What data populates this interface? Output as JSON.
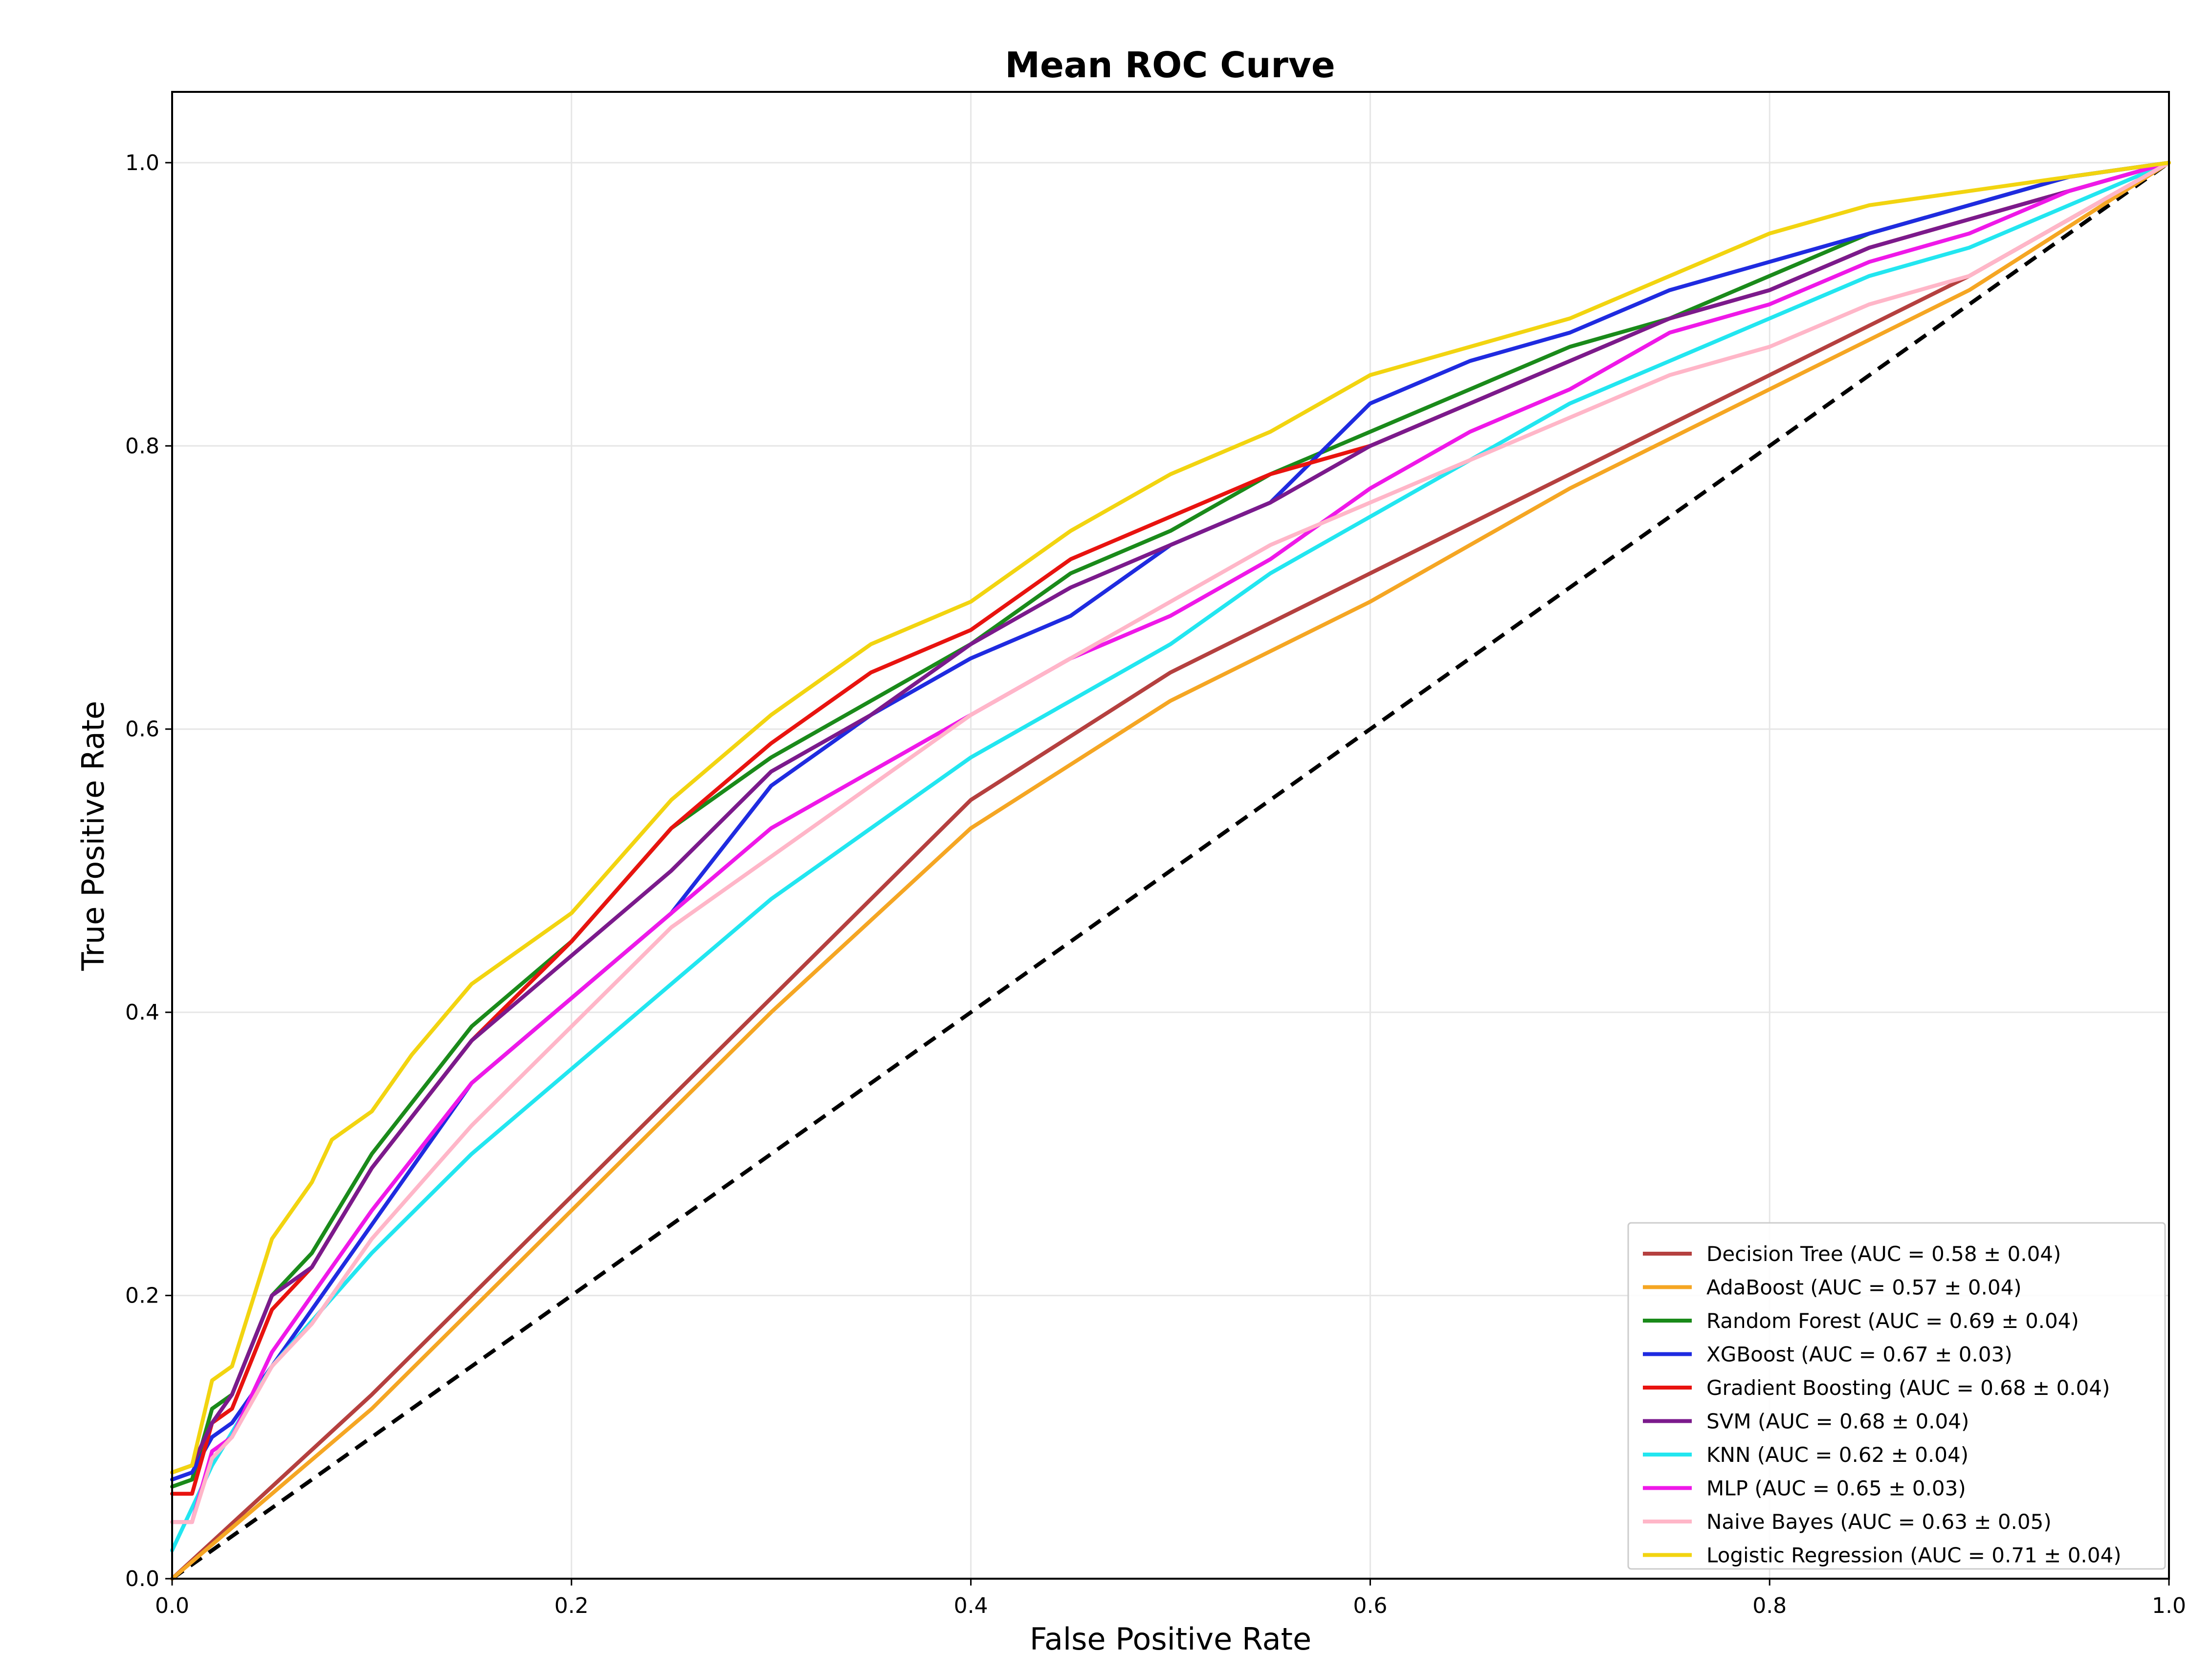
{
  "chart_data": {
    "type": "line",
    "title": "Mean ROC Curve",
    "xlabel": "False Positive Rate",
    "ylabel": "True Positive Rate",
    "xlim": [
      0.0,
      1.0
    ],
    "ylim": [
      0.0,
      1.05
    ],
    "x_ticks": [
      "0.0",
      "0.2",
      "0.4",
      "0.6",
      "0.8",
      "1.0"
    ],
    "y_ticks": [
      "0.0",
      "0.2",
      "0.4",
      "0.6",
      "0.8",
      "1.0"
    ],
    "grid": true,
    "legend_position": "lower-right",
    "reference_line": {
      "style": "dashed",
      "color": "#000000",
      "x": [
        0.0,
        1.0
      ],
      "y": [
        0.0,
        1.0
      ]
    },
    "series": [
      {
        "name": "Decision Tree (AUC = 0.58 ± 0.04)",
        "color": "#b5403f",
        "x": [
          0.0,
          0.05,
          0.1,
          0.2,
          0.3,
          0.4,
          0.5,
          0.6,
          0.7,
          0.8,
          0.9,
          1.0
        ],
        "y": [
          0.0,
          0.065,
          0.13,
          0.27,
          0.41,
          0.55,
          0.64,
          0.71,
          0.78,
          0.85,
          0.92,
          1.0
        ]
      },
      {
        "name": "AdaBoost (AUC = 0.57 ± 0.04)",
        "color": "#f5a623",
        "x": [
          0.0,
          0.05,
          0.1,
          0.2,
          0.3,
          0.4,
          0.5,
          0.6,
          0.7,
          0.8,
          0.9,
          1.0
        ],
        "y": [
          0.0,
          0.06,
          0.12,
          0.26,
          0.4,
          0.53,
          0.62,
          0.69,
          0.77,
          0.84,
          0.91,
          1.0
        ]
      },
      {
        "name": "Random Forest (AUC = 0.69 ± 0.04)",
        "color": "#1a8a1a",
        "x": [
          0.0,
          0.01,
          0.02,
          0.03,
          0.05,
          0.07,
          0.1,
          0.15,
          0.2,
          0.25,
          0.3,
          0.35,
          0.4,
          0.45,
          0.5,
          0.55,
          0.6,
          0.65,
          0.7,
          0.75,
          0.8,
          0.85,
          0.9,
          0.95,
          1.0
        ],
        "y": [
          0.065,
          0.07,
          0.12,
          0.13,
          0.2,
          0.23,
          0.3,
          0.39,
          0.45,
          0.53,
          0.58,
          0.62,
          0.66,
          0.71,
          0.74,
          0.78,
          0.81,
          0.84,
          0.87,
          0.89,
          0.92,
          0.95,
          0.97,
          0.99,
          1.0
        ]
      },
      {
        "name": "XGBoost (AUC = 0.67 ± 0.03)",
        "color": "#1f2be0",
        "x": [
          0.0,
          0.01,
          0.02,
          0.03,
          0.05,
          0.07,
          0.1,
          0.15,
          0.2,
          0.25,
          0.3,
          0.35,
          0.4,
          0.45,
          0.5,
          0.55,
          0.6,
          0.65,
          0.7,
          0.75,
          0.8,
          0.85,
          0.9,
          0.95,
          1.0
        ],
        "y": [
          0.07,
          0.075,
          0.1,
          0.11,
          0.15,
          0.19,
          0.25,
          0.35,
          0.41,
          0.47,
          0.56,
          0.61,
          0.65,
          0.68,
          0.73,
          0.76,
          0.83,
          0.86,
          0.88,
          0.91,
          0.93,
          0.95,
          0.97,
          0.99,
          1.0
        ]
      },
      {
        "name": "Gradient Boosting (AUC = 0.68 ± 0.04)",
        "color": "#e8130f",
        "x": [
          0.0,
          0.01,
          0.02,
          0.03,
          0.05,
          0.07,
          0.1,
          0.15,
          0.2,
          0.25,
          0.3,
          0.35,
          0.4,
          0.45,
          0.5,
          0.55,
          0.6,
          0.65,
          0.7,
          0.75,
          0.8,
          0.85,
          0.9,
          0.95,
          1.0
        ],
        "y": [
          0.06,
          0.06,
          0.11,
          0.12,
          0.19,
          0.22,
          0.29,
          0.38,
          0.45,
          0.53,
          0.59,
          0.64,
          0.67,
          0.72,
          0.75,
          0.78,
          0.8,
          0.83,
          0.86,
          0.89,
          0.91,
          0.94,
          0.96,
          0.98,
          1.0
        ]
      },
      {
        "name": "SVM (AUC = 0.68 ± 0.04)",
        "color": "#7b1a8c",
        "x": [
          0.0,
          0.01,
          0.02,
          0.03,
          0.05,
          0.07,
          0.1,
          0.15,
          0.2,
          0.25,
          0.3,
          0.35,
          0.4,
          0.45,
          0.5,
          0.55,
          0.6,
          0.65,
          0.7,
          0.75,
          0.8,
          0.85,
          0.9,
          0.95,
          1.0
        ],
        "y": [
          0.075,
          0.08,
          0.11,
          0.13,
          0.2,
          0.22,
          0.29,
          0.38,
          0.44,
          0.5,
          0.57,
          0.61,
          0.66,
          0.7,
          0.73,
          0.76,
          0.8,
          0.83,
          0.86,
          0.89,
          0.91,
          0.94,
          0.96,
          0.98,
          1.0
        ]
      },
      {
        "name": "KNN (AUC = 0.62 ± 0.04)",
        "color": "#22e6f0",
        "x": [
          0.0,
          0.02,
          0.05,
          0.1,
          0.15,
          0.2,
          0.25,
          0.3,
          0.35,
          0.4,
          0.45,
          0.5,
          0.55,
          0.6,
          0.65,
          0.7,
          0.75,
          0.8,
          0.85,
          0.9,
          0.95,
          1.0
        ],
        "y": [
          0.02,
          0.08,
          0.15,
          0.23,
          0.3,
          0.36,
          0.42,
          0.48,
          0.53,
          0.58,
          0.62,
          0.66,
          0.71,
          0.75,
          0.79,
          0.83,
          0.86,
          0.89,
          0.92,
          0.94,
          0.97,
          1.0
        ]
      },
      {
        "name": "MLP (AUC = 0.65 ± 0.03)",
        "color": "#ef18e8",
        "x": [
          0.0,
          0.01,
          0.02,
          0.03,
          0.05,
          0.07,
          0.1,
          0.15,
          0.2,
          0.25,
          0.3,
          0.35,
          0.4,
          0.45,
          0.5,
          0.55,
          0.6,
          0.65,
          0.7,
          0.75,
          0.8,
          0.85,
          0.9,
          0.95,
          1.0
        ],
        "y": [
          0.04,
          0.04,
          0.09,
          0.1,
          0.16,
          0.2,
          0.26,
          0.35,
          0.41,
          0.47,
          0.53,
          0.57,
          0.61,
          0.65,
          0.68,
          0.72,
          0.77,
          0.81,
          0.84,
          0.88,
          0.9,
          0.93,
          0.95,
          0.98,
          1.0
        ]
      },
      {
        "name": "Naive Bayes (AUC = 0.63 ± 0.05)",
        "color": "#ffb6c8",
        "x": [
          0.0,
          0.01,
          0.02,
          0.03,
          0.05,
          0.07,
          0.1,
          0.15,
          0.2,
          0.25,
          0.3,
          0.35,
          0.4,
          0.45,
          0.5,
          0.55,
          0.6,
          0.65,
          0.7,
          0.75,
          0.8,
          0.85,
          0.9,
          0.95,
          1.0
        ],
        "y": [
          0.04,
          0.04,
          0.085,
          0.1,
          0.15,
          0.18,
          0.24,
          0.32,
          0.39,
          0.46,
          0.51,
          0.56,
          0.61,
          0.65,
          0.69,
          0.73,
          0.76,
          0.79,
          0.82,
          0.85,
          0.87,
          0.9,
          0.92,
          0.96,
          1.0
        ]
      },
      {
        "name": "Logistic Regression (AUC = 0.71 ± 0.04)",
        "color": "#f2d410",
        "x": [
          0.0,
          0.01,
          0.02,
          0.03,
          0.05,
          0.07,
          0.08,
          0.1,
          0.12,
          0.15,
          0.2,
          0.25,
          0.3,
          0.35,
          0.4,
          0.45,
          0.5,
          0.55,
          0.6,
          0.65,
          0.7,
          0.75,
          0.8,
          0.85,
          0.9,
          0.95,
          1.0
        ],
        "y": [
          0.075,
          0.08,
          0.14,
          0.15,
          0.24,
          0.28,
          0.31,
          0.33,
          0.37,
          0.42,
          0.47,
          0.55,
          0.61,
          0.66,
          0.69,
          0.74,
          0.78,
          0.81,
          0.85,
          0.87,
          0.89,
          0.92,
          0.95,
          0.97,
          0.98,
          0.99,
          1.0
        ]
      }
    ]
  }
}
